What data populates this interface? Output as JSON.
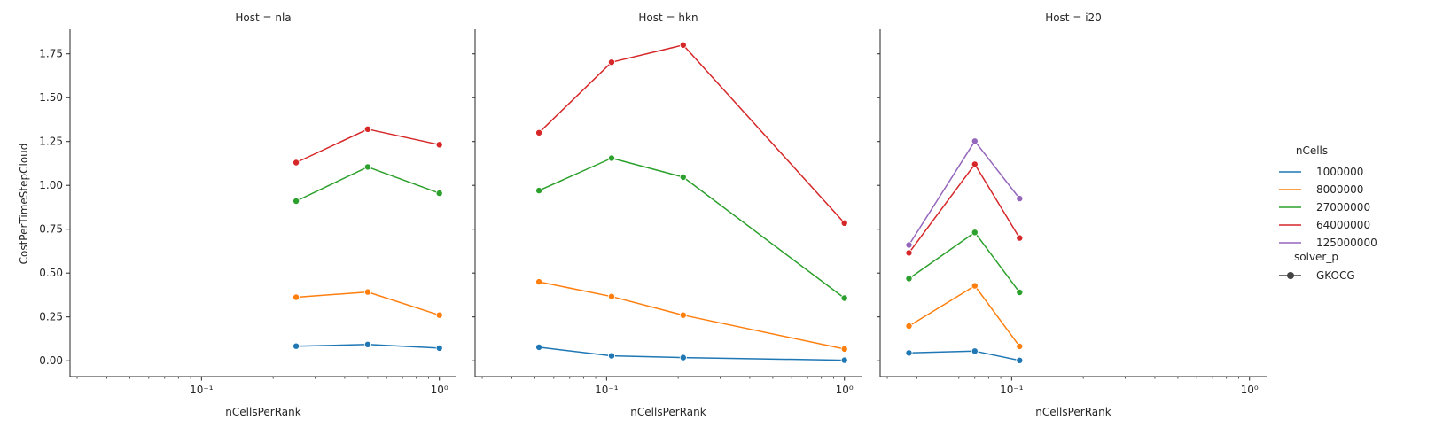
{
  "chart_data": {
    "type": "line",
    "x_scale": "log",
    "shared_y": true,
    "xlabel": "nCellsPerRank",
    "ylabel": "CostPerTimeStepCloud",
    "ylim": [
      -0.09,
      1.89
    ],
    "yticks": [
      0.0,
      0.25,
      0.5,
      0.75,
      1.0,
      1.25,
      1.5,
      1.75
    ],
    "ytick_labels": [
      "0.00",
      "0.25",
      "0.50",
      "0.75",
      "1.00",
      "1.25",
      "1.50",
      "1.75"
    ],
    "xticks": [
      0.1,
      1
    ],
    "xtick_labels": [
      "10⁻¹",
      "10⁰"
    ],
    "legend": {
      "placement": "right",
      "hue_title": "nCells",
      "hue_entries": [
        {
          "label": "1000000",
          "color": "#1f77b4"
        },
        {
          "label": "8000000",
          "color": "#ff7f0e"
        },
        {
          "label": "27000000",
          "color": "#2ca02c"
        },
        {
          "label": "64000000",
          "color": "#d62728"
        },
        {
          "label": "125000000",
          "color": "#9467bd"
        }
      ],
      "style_title": "solver_p",
      "style_entries": [
        {
          "label": "GKOCG",
          "color": "#444444"
        }
      ]
    },
    "panels": [
      {
        "title": "Host = nla",
        "xlim": [
          0.028,
          1.18
        ],
        "series": [
          {
            "name": "1000000",
            "color": "#1f77b4",
            "x": [
              0.25,
              0.5,
              1.0
            ],
            "y": [
              0.083,
              0.093,
              0.072
            ]
          },
          {
            "name": "8000000",
            "color": "#ff7f0e",
            "x": [
              0.25,
              0.5,
              1.0
            ],
            "y": [
              0.362,
              0.392,
              0.26
            ]
          },
          {
            "name": "27000000",
            "color": "#2ca02c",
            "x": [
              0.25,
              0.5,
              1.0
            ],
            "y": [
              0.91,
              1.105,
              0.955
            ]
          },
          {
            "name": "64000000",
            "color": "#d62728",
            "x": [
              0.25,
              0.5,
              1.0
            ],
            "y": [
              1.13,
              1.32,
              1.232
            ]
          }
        ]
      },
      {
        "title": "Host = hkn",
        "xlim": [
          0.028,
          1.18
        ],
        "series": [
          {
            "name": "1000000",
            "color": "#1f77b4",
            "x": [
              0.052,
              0.105,
              0.21,
              1.0
            ],
            "y": [
              0.077,
              0.028,
              0.018,
              0.003
            ]
          },
          {
            "name": "8000000",
            "color": "#ff7f0e",
            "x": [
              0.052,
              0.105,
              0.21,
              1.0
            ],
            "y": [
              0.45,
              0.366,
              0.26,
              0.067
            ]
          },
          {
            "name": "27000000",
            "color": "#2ca02c",
            "x": [
              0.052,
              0.105,
              0.21,
              1.0
            ],
            "y": [
              0.97,
              1.155,
              1.047,
              0.357
            ]
          },
          {
            "name": "64000000",
            "color": "#d62728",
            "x": [
              0.052,
              0.105,
              0.21,
              1.0
            ],
            "y": [
              1.3,
              1.702,
              1.8,
              0.785
            ]
          }
        ]
      },
      {
        "title": "Host = i20",
        "xlim": [
          0.028,
          1.18
        ],
        "series": [
          {
            "name": "1000000",
            "color": "#1f77b4",
            "x": [
              0.037,
              0.07,
              0.108
            ],
            "y": [
              0.045,
              0.055,
              0.002
            ]
          },
          {
            "name": "8000000",
            "color": "#ff7f0e",
            "x": [
              0.037,
              0.07,
              0.108
            ],
            "y": [
              0.198,
              0.427,
              0.082
            ]
          },
          {
            "name": "27000000",
            "color": "#2ca02c",
            "x": [
              0.037,
              0.07,
              0.108
            ],
            "y": [
              0.468,
              0.732,
              0.39
            ]
          },
          {
            "name": "64000000",
            "color": "#d62728",
            "x": [
              0.037,
              0.07,
              0.108
            ],
            "y": [
              0.615,
              1.12,
              0.7
            ]
          },
          {
            "name": "125000000",
            "color": "#9467bd",
            "x": [
              0.037,
              0.07,
              0.108
            ],
            "y": [
              0.66,
              1.252,
              0.925
            ]
          }
        ]
      }
    ]
  }
}
